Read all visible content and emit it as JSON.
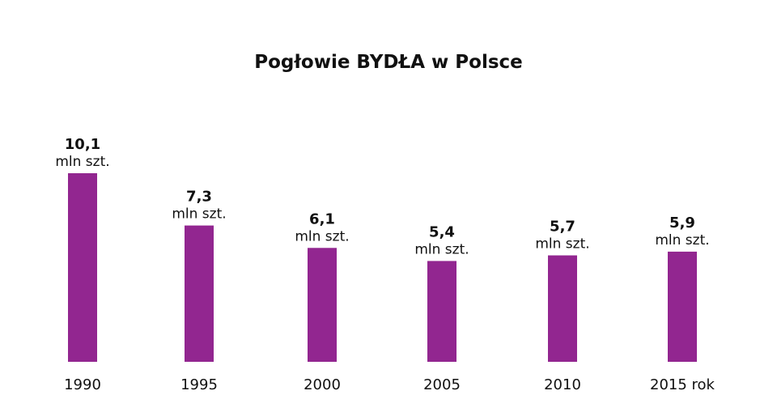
{
  "chart_data": {
    "type": "bar",
    "title": "Pogłowie BYDŁA w Polsce",
    "categories": [
      "1990",
      "1995",
      "2000",
      "2005",
      "2010",
      "2015 rok"
    ],
    "values": [
      10.1,
      7.3,
      6.1,
      5.4,
      5.7,
      5.9
    ],
    "value_labels": [
      "10,1",
      "7,3",
      "6,1",
      "5,4",
      "5,7",
      "5,9"
    ],
    "unit_label": "mln szt.",
    "ylim": [
      0,
      10.1
    ],
    "bar_color": "#922690",
    "grid": false,
    "legend": "none"
  }
}
